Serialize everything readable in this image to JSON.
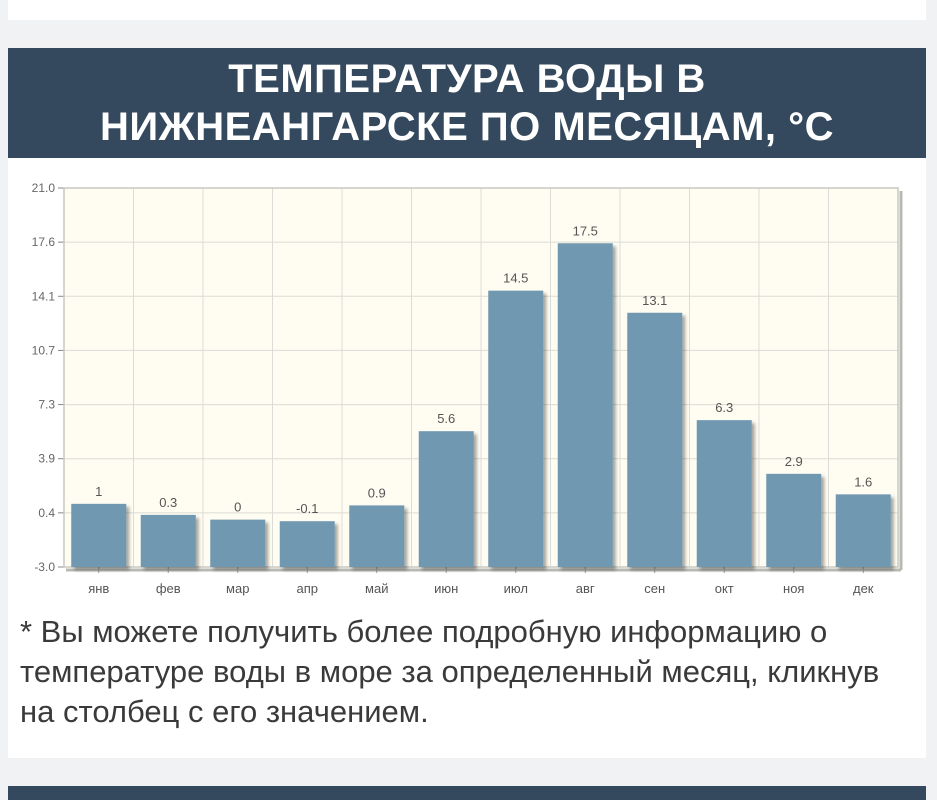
{
  "header": {
    "title": "ТЕМПЕРАТУРА ВОДЫ В НИЖНЕАНГАРСКЕ ПО МЕСЯЦАМ, °C"
  },
  "colors": {
    "header_bg": "#34495e",
    "bar": "#6f98b1",
    "plot_bg": "#fffdf2",
    "grid": "#dcdcd6"
  },
  "chart_data": {
    "type": "bar",
    "categories": [
      "янв",
      "фев",
      "мар",
      "апр",
      "май",
      "июн",
      "июл",
      "авг",
      "сен",
      "окт",
      "ноя",
      "дек"
    ],
    "values": [
      1,
      0.3,
      0,
      -0.1,
      0.9,
      5.6,
      14.5,
      17.5,
      13.1,
      6.3,
      2.9,
      1.6
    ],
    "value_labels": [
      "1",
      "0.3",
      "0",
      "-0.1",
      "0.9",
      "5.6",
      "14.5",
      "17.5",
      "13.1",
      "6.3",
      "2.9",
      "1.6"
    ],
    "yticks": [
      "21.0",
      "17.6",
      "14.1",
      "10.7",
      "7.3",
      "3.9",
      "0.4",
      "-3.0"
    ],
    "ylim": [
      -3.0,
      21.0
    ],
    "grid": true
  },
  "footnote": {
    "text": "* Вы можете получить более подробную информацию о температуре воды в море за определенный месяц, кликнув на столбец с его значением."
  }
}
